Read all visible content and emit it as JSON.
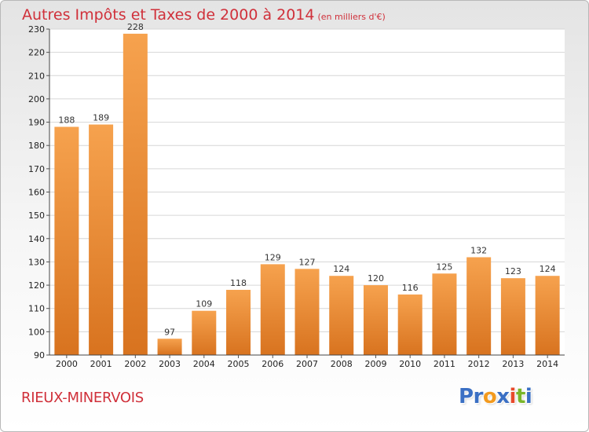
{
  "title": "Autres Impôts et Taxes de 2000 à 2014",
  "subtitle": "(en milliers d'€)",
  "commune": "RIEUX-MINERVOIS",
  "logo": {
    "text": "Proxiti",
    "letters": [
      {
        "ch": "P",
        "color": "#3a6fc4"
      },
      {
        "ch": "r",
        "color": "#3a6fc4"
      },
      {
        "ch": "o",
        "color": "#f39a1e"
      },
      {
        "ch": "x",
        "color": "#3a6fc4"
      },
      {
        "ch": "i",
        "color": "#e84a2c"
      },
      {
        "ch": "t",
        "color": "#7ab62a"
      },
      {
        "ch": "i",
        "color": "#3a6fc4"
      }
    ]
  },
  "colors": {
    "bar_top": "#f6a24e",
    "bar_bottom": "#d8731f",
    "title": "#d0303a",
    "grid": "#d6d6d6"
  },
  "chart_data": {
    "type": "bar",
    "categories": [
      "2000",
      "2001",
      "2002",
      "2003",
      "2004",
      "2005",
      "2006",
      "2007",
      "2008",
      "2009",
      "2010",
      "2011",
      "2012",
      "2013",
      "2014"
    ],
    "values": [
      188,
      189,
      228,
      97,
      109,
      118,
      129,
      127,
      124,
      120,
      116,
      125,
      132,
      123,
      124
    ],
    "title": "Autres Impôts et Taxes de 2000 à 2014",
    "ylim": [
      90,
      230
    ],
    "yticks": [
      90,
      100,
      110,
      120,
      130,
      140,
      150,
      160,
      170,
      180,
      190,
      200,
      210,
      220,
      230
    ],
    "grid": true,
    "legend": "none"
  }
}
